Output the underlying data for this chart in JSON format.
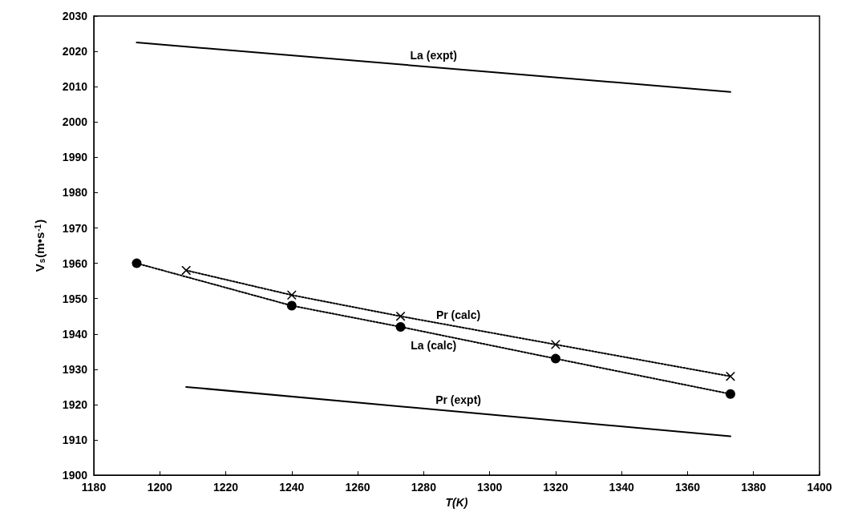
{
  "chart_data": {
    "type": "line",
    "xlabel": "T(K)",
    "ylabel": "V$_{s}$(m•s$^{-1}$)",
    "xlim": [
      1180,
      1400
    ],
    "xticks": [
      1180,
      1200,
      1220,
      1240,
      1260,
      1280,
      1300,
      1320,
      1340,
      1360,
      1380,
      1400
    ],
    "ylim": [
      1900,
      2030
    ],
    "yticks": [
      1900,
      1910,
      1920,
      1930,
      1940,
      1950,
      1960,
      1970,
      1980,
      1990,
      2000,
      2010,
      2020,
      2030
    ],
    "grid": false,
    "legend": false,
    "series": [
      {
        "name": "La (expt)",
        "color": "#000000",
        "x": [
          1193,
          1373
        ],
        "values": [
          2022.5,
          2008.5
        ],
        "marker": "none",
        "line_style": "solid"
      },
      {
        "name": "La (calc)",
        "color": "#000000",
        "x": [
          1193,
          1240,
          1273,
          1320,
          1373
        ],
        "values": [
          1960,
          1948,
          1942,
          1933,
          1923
        ],
        "marker": "circle",
        "line_style": "dotted"
      },
      {
        "name": "Pr (calc)",
        "color": "#000000",
        "x": [
          1208,
          1240,
          1273,
          1320,
          1373
        ],
        "values": [
          1958,
          1951,
          1945,
          1937,
          1928
        ],
        "marker": "cross",
        "line_style": "dotted"
      },
      {
        "name": "Pr (expt)",
        "color": "#000000",
        "x": [
          1208,
          1373
        ],
        "values": [
          1925,
          1911
        ],
        "marker": "none",
        "line_style": "solid"
      }
    ]
  }
}
